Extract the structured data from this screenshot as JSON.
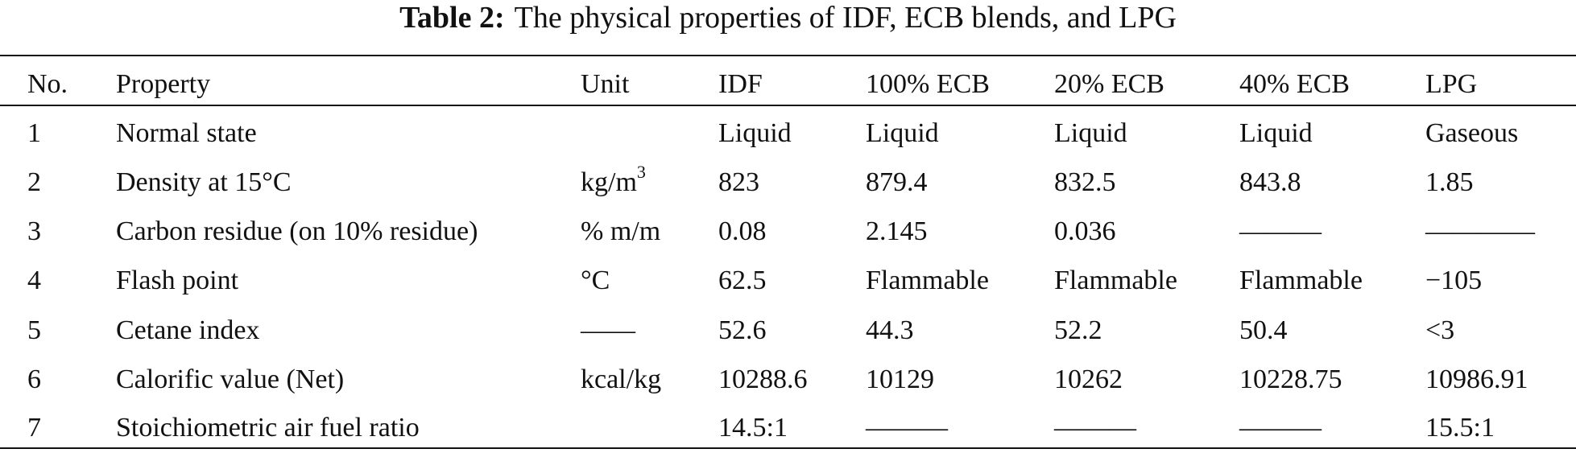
{
  "table": {
    "caption": {
      "label": "Table 2:",
      "text": "The physical properties of IDF, ECB blends, and LPG"
    },
    "header": [
      "No.",
      "Property",
      "Unit",
      "IDF",
      "100% ECB",
      "20% ECB",
      "40% ECB",
      "LPG"
    ],
    "rows": [
      [
        "1",
        "Normal state",
        null,
        "Liquid",
        "Liquid",
        "Liquid",
        "Liquid",
        "Gaseous"
      ],
      [
        "2",
        "Density at 15°C",
        {
          "base": "kg/m",
          "sup": "3"
        },
        "823",
        "879.4",
        "832.5",
        "843.8",
        "1.85"
      ],
      [
        "3",
        "Carbon residue (on 10% residue)",
        "% m/m",
        "0.08",
        "2.145",
        "0.036",
        "———",
        "————"
      ],
      [
        "4",
        "Flash point",
        "°C",
        "62.5",
        "Flammable",
        "Flammable",
        "Flammable",
        "−105"
      ],
      [
        "5",
        "Cetane index",
        "——",
        "52.6",
        "44.3",
        "52.2",
        "50.4",
        "<3"
      ],
      [
        "6",
        "Calorific value (Net)",
        "kcal/kg",
        "10288.6",
        "10129",
        "10262",
        "10228.75",
        "10986.91"
      ],
      [
        "7",
        "Stoichiometric air fuel ratio",
        null,
        "14.5:1",
        "———",
        "———",
        "———",
        "15.5:1"
      ]
    ]
  }
}
